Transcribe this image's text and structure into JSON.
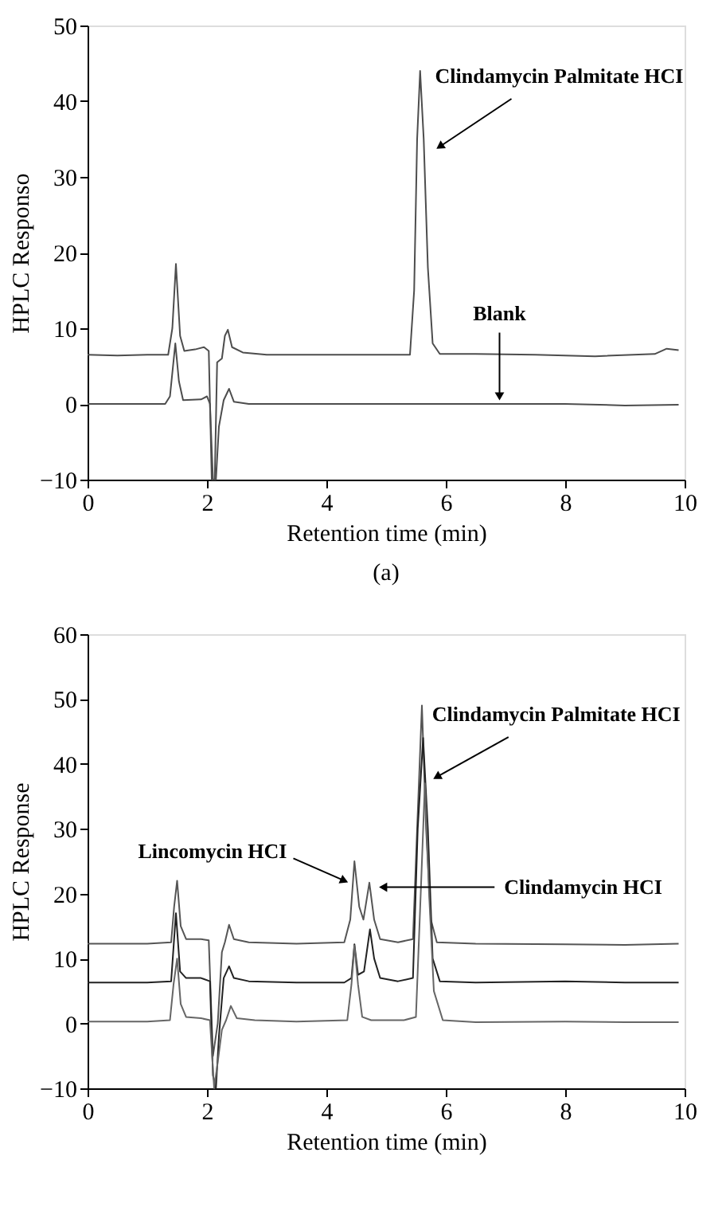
{
  "chart_data": [
    {
      "type": "line",
      "xlabel": "Retention time (min)",
      "ylabel": "HPLC Responso",
      "xlim": [
        0,
        10
      ],
      "xticks": [
        0,
        2,
        4,
        6,
        8,
        10
      ],
      "ylim": [
        -10,
        50
      ],
      "yticks": [
        -10,
        0,
        10,
        20,
        30,
        40,
        50
      ],
      "grid": false,
      "series": [
        {
          "color": "#4d4d4d",
          "x": [
            0,
            0.5,
            1.0,
            1.35,
            1.42,
            1.48,
            1.55,
            1.62,
            1.8,
            1.95,
            2.03,
            2.08,
            2.13,
            2.17,
            2.25,
            2.3,
            2.35,
            2.42,
            2.6,
            3,
            4,
            5,
            5.4,
            5.47,
            5.52,
            5.57,
            5.63,
            5.7,
            5.78,
            5.9,
            6.5,
            7.5,
            8.5,
            9.5,
            9.7,
            9.9
          ],
          "values": [
            6.5,
            6.4,
            6.5,
            6.5,
            10,
            18.5,
            9,
            7,
            7.2,
            7.5,
            7,
            -10,
            -10,
            5.5,
            6,
            9,
            9.8,
            7.5,
            6.8,
            6.5,
            6.5,
            6.5,
            6.5,
            15,
            35,
            44,
            35,
            18,
            8,
            6.6,
            6.6,
            6.5,
            6.3,
            6.6,
            7.3,
            7.1
          ]
        },
        {
          "color": "#4d4d4d",
          "x": [
            0,
            1.3,
            1.38,
            1.47,
            1.53,
            1.6,
            1.9,
            2.0,
            2.05,
            2.1,
            2.15,
            2.2,
            2.28,
            2.37,
            2.45,
            2.7,
            4,
            6,
            7,
            8,
            9,
            9.9
          ],
          "values": [
            0,
            0,
            1,
            8,
            3,
            0.5,
            0.6,
            1,
            0,
            -10,
            -10,
            -3,
            0.5,
            2,
            0.3,
            0,
            0,
            0,
            0,
            0,
            -0.2,
            -0.1
          ]
        }
      ],
      "annotations": [
        {
          "text": "Clindamycin Palmitate HCI",
          "x": 5.9,
          "y": 34
        },
        {
          "text": "Blank",
          "x": 6.9,
          "y": 1
        },
        "(a)"
      ]
    },
    {
      "type": "line",
      "xlabel": "Retention time (min)",
      "ylabel": "HPLC Response",
      "xlim": [
        0,
        10
      ],
      "xticks": [
        0,
        2,
        4,
        6,
        8,
        10
      ],
      "ylim": [
        -10,
        60
      ],
      "yticks": [
        -10,
        0,
        10,
        20,
        30,
        40,
        50,
        60
      ],
      "grid": false,
      "series": [
        {
          "color": "#555555",
          "x": [
            0,
            1.0,
            1.4,
            1.45,
            1.5,
            1.56,
            1.65,
            1.9,
            2.03,
            2.1,
            2.18,
            2.25,
            2.3,
            2.37,
            2.45,
            2.7,
            3.5,
            4.3,
            4.4,
            4.47,
            4.55,
            4.62,
            4.72,
            4.8,
            4.9,
            5.2,
            5.45,
            5.52,
            5.6,
            5.67,
            5.75,
            5.85,
            6.5,
            8,
            9,
            9.9
          ],
          "values": [
            12.3,
            12.3,
            12.5,
            18,
            22,
            15,
            13,
            13,
            12.8,
            -5,
            0,
            11,
            12.5,
            15.2,
            13,
            12.5,
            12.3,
            12.5,
            16,
            25,
            18,
            16,
            21.7,
            16,
            13,
            12.5,
            13,
            30,
            49,
            30,
            16,
            12.5,
            12.3,
            12.2,
            12.1,
            12.3
          ]
        },
        {
          "color": "#222222",
          "x": [
            0,
            1.0,
            1.4,
            1.48,
            1.55,
            1.65,
            1.9,
            2.05,
            2.1,
            2.15,
            2.2,
            2.28,
            2.37,
            2.45,
            2.7,
            3.5,
            4.3,
            4.42,
            4.47,
            4.53,
            4.63,
            4.73,
            4.8,
            4.9,
            5.2,
            5.45,
            5.53,
            5.62,
            5.7,
            5.78,
            5.9,
            6.5,
            8,
            9,
            9.9
          ],
          "values": [
            6.3,
            6.3,
            6.5,
            17,
            8,
            7,
            7,
            6.5,
            -8,
            -10,
            -2,
            7,
            8.8,
            7,
            6.5,
            6.3,
            6.3,
            7,
            12.2,
            7.5,
            8,
            14.5,
            10,
            7,
            6.5,
            7,
            30,
            44,
            30,
            10,
            6.5,
            6.3,
            6.5,
            6.3,
            6.3
          ]
        },
        {
          "color": "#666666",
          "x": [
            0,
            1.0,
            1.38,
            1.44,
            1.5,
            1.56,
            1.65,
            1.9,
            2.05,
            2.12,
            2.18,
            2.25,
            2.32,
            2.4,
            2.5,
            2.8,
            3.5,
            4.35,
            4.42,
            4.47,
            4.53,
            4.6,
            4.75,
            5.3,
            5.5,
            5.58,
            5.65,
            5.72,
            5.8,
            5.95,
            6.5,
            8,
            9,
            9.9
          ],
          "values": [
            0.3,
            0.3,
            0.5,
            6,
            10,
            3,
            1,
            0.8,
            0.5,
            -10,
            -6,
            -1,
            0.5,
            2.7,
            0.8,
            0.5,
            0.3,
            0.5,
            6,
            12,
            6,
            1,
            0.5,
            0.5,
            1,
            20,
            37,
            20,
            5,
            0.5,
            0.2,
            0.3,
            0.2,
            0.2
          ]
        }
      ],
      "annotations": [
        {
          "text": "Clindamycin Palmitate HCI",
          "x": 5.85,
          "y": 38
        },
        {
          "text": "Lincomycin HCI",
          "x": 4.3,
          "y": 22
        },
        {
          "text": "Clindamycin HCI",
          "x": 4.95,
          "y": 21
        }
      ]
    }
  ]
}
